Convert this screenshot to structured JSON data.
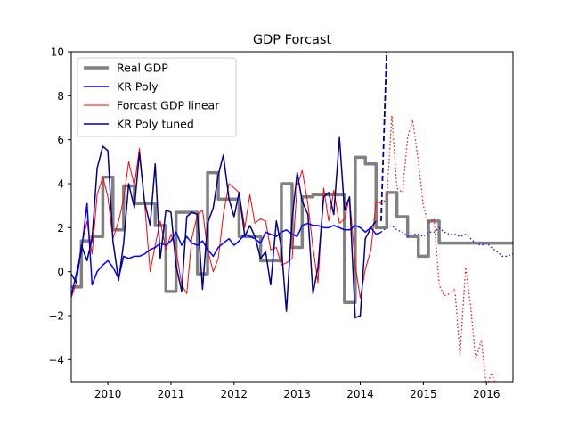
{
  "chart_data": {
    "type": "line",
    "title": "GDP Forcast",
    "xlabel": "",
    "ylabel": "",
    "xlim": [
      2009.42,
      2016.42
    ],
    "ylim": [
      -5,
      10
    ],
    "grid": false,
    "legend_position": "top-left",
    "x_ticks": [
      2010,
      2011,
      2012,
      2013,
      2014,
      2015,
      2016
    ],
    "x_tick_labels": [
      "2010",
      "2011",
      "2012",
      "2013",
      "2014",
      "2015",
      "2016"
    ],
    "y_ticks": [
      -4,
      -2,
      0,
      2,
      4,
      6,
      8,
      10
    ],
    "y_tick_labels": [
      "−4",
      "−2",
      "0",
      "2",
      "4",
      "6",
      "8",
      "10"
    ],
    "series": [
      {
        "name": "Real GDP",
        "color": "#808080",
        "style": "solid-thick",
        "x": [
          2009.42,
          2009.58,
          2009.58,
          2009.75,
          2009.75,
          2009.92,
          2009.92,
          2010.08,
          2010.08,
          2010.25,
          2010.25,
          2010.42,
          2010.42,
          2010.58,
          2010.58,
          2010.75,
          2010.75,
          2010.92,
          2010.92,
          2011.08,
          2011.08,
          2011.25,
          2011.25,
          2011.42,
          2011.42,
          2011.58,
          2011.58,
          2011.75,
          2011.75,
          2011.92,
          2011.92,
          2012.08,
          2012.08,
          2012.25,
          2012.25,
          2012.42,
          2012.42,
          2012.58,
          2012.58,
          2012.75,
          2012.75,
          2012.92,
          2012.92,
          2013.08,
          2013.08,
          2013.25,
          2013.25,
          2013.42,
          2013.42,
          2013.58,
          2013.58,
          2013.75,
          2013.75,
          2013.92,
          2013.92,
          2014.08,
          2014.08,
          2014.25,
          2014.25,
          2014.42,
          2014.42,
          2014.58,
          2014.58,
          2014.75,
          2014.75,
          2014.92,
          2014.92,
          2015.08,
          2015.08,
          2015.25,
          2015.25,
          2015.42,
          2015.42,
          2015.58,
          2015.58,
          2015.75,
          2015.75,
          2015.92,
          2015.92,
          2016.08,
          2016.08,
          2016.25,
          2016.25,
          2016.42
        ],
        "values": [
          -0.7,
          -0.7,
          1.4,
          1.4,
          1.6,
          1.6,
          4.3,
          4.3,
          1.9,
          1.9,
          3.9,
          3.9,
          3.1,
          3.1,
          3.1,
          3.1,
          2.1,
          2.1,
          -0.9,
          -0.9,
          2.7,
          2.7,
          2.7,
          2.7,
          -0.1,
          -0.1,
          4.5,
          4.5,
          3.3,
          3.3,
          3.3,
          3.3,
          1.6,
          1.6,
          1.6,
          1.6,
          0.5,
          0.5,
          0.5,
          0.5,
          4.0,
          4.0,
          1.1,
          1.1,
          3.4,
          3.4,
          3.5,
          3.5,
          3.5,
          3.5,
          3.5,
          3.5,
          -1.4,
          -1.4,
          5.2,
          5.2,
          4.9,
          4.9,
          2.0,
          2.0,
          3.6,
          3.6,
          2.5,
          2.5,
          1.6,
          1.6,
          0.7,
          0.7,
          2.3,
          2.3,
          1.3,
          1.3,
          1.3,
          1.3,
          1.3,
          1.3,
          1.3,
          1.3,
          1.3,
          1.3,
          1.3,
          1.3,
          1.3,
          1.3
        ]
      },
      {
        "name": "KR Poly",
        "color": "#0000ff",
        "style": "solid",
        "x": [
          2009.42,
          2009.58,
          2009.67,
          2009.75,
          2009.83,
          2009.92,
          2010.0,
          2010.08,
          2010.17,
          2010.25,
          2010.33,
          2010.42,
          2010.5,
          2010.58,
          2010.67,
          2010.75,
          2010.83,
          2010.92,
          2011.0,
          2011.08,
          2011.17,
          2011.25,
          2011.33,
          2011.42,
          2011.5,
          2011.58,
          2011.67,
          2011.75,
          2011.83,
          2011.92,
          2012.0,
          2012.08,
          2012.17,
          2012.25,
          2012.33,
          2012.42,
          2012.5,
          2012.58,
          2012.67,
          2012.75,
          2012.83,
          2012.92,
          2013.0,
          2013.08,
          2013.17,
          2013.25,
          2013.33,
          2013.42,
          2013.5,
          2013.58,
          2013.67,
          2013.75,
          2013.83,
          2013.92,
          2014.0,
          2014.08,
          2014.17,
          2014.25,
          2014.33
        ],
        "values": [
          -1.1,
          0.9,
          3.1,
          -0.6,
          0.0,
          0.3,
          0.5,
          0.2,
          -0.3,
          0.7,
          0.6,
          0.7,
          0.7,
          0.8,
          1.0,
          1.1,
          1.3,
          1.2,
          1.4,
          1.8,
          1.2,
          1.6,
          1.3,
          1.2,
          1.4,
          1.0,
          0.7,
          1.1,
          1.3,
          1.5,
          1.2,
          1.4,
          1.7,
          1.6,
          1.5,
          1.3,
          1.8,
          1.7,
          1.6,
          1.8,
          1.9,
          1.7,
          1.6,
          2.1,
          2.2,
          2.1,
          2.1,
          2.0,
          2.0,
          2.1,
          2.0,
          1.9,
          1.9,
          2.1,
          2.0,
          1.8,
          2.0,
          1.7,
          1.8
        ]
      },
      {
        "name": "Forcast GDP linear",
        "color": "#ff0000",
        "style": "solid-thin",
        "x": [
          2009.42,
          2009.5,
          2009.58,
          2009.67,
          2009.75,
          2009.83,
          2009.92,
          2010.0,
          2010.08,
          2010.17,
          2010.25,
          2010.33,
          2010.42,
          2010.5,
          2010.58,
          2010.67,
          2010.75,
          2010.83,
          2010.92,
          2011.0,
          2011.08,
          2011.17,
          2011.25,
          2011.33,
          2011.42,
          2011.5,
          2011.58,
          2011.67,
          2011.75,
          2011.83,
          2011.92,
          2012.0,
          2012.08,
          2012.17,
          2012.25,
          2012.33,
          2012.42,
          2012.5,
          2012.58,
          2012.67,
          2012.75,
          2012.83,
          2012.92,
          2013.0,
          2013.08,
          2013.17,
          2013.25,
          2013.33,
          2013.42,
          2013.5,
          2013.58,
          2013.67,
          2013.75,
          2013.83,
          2013.92,
          2014.0,
          2014.08,
          2014.17,
          2014.25,
          2014.33
        ],
        "values": [
          -1.2,
          -0.5,
          1.1,
          2.3,
          0.8,
          3.5,
          4.3,
          3.4,
          1.5,
          2.3,
          3.3,
          5.0,
          3.9,
          5.6,
          3.2,
          0.0,
          1.2,
          2.3,
          1.0,
          1.7,
          1.0,
          -0.6,
          -1.0,
          1.5,
          2.6,
          2.8,
          1.0,
          0.0,
          0.6,
          2.6,
          4.0,
          3.8,
          3.6,
          2.0,
          3.5,
          2.2,
          2.4,
          2.3,
          1.0,
          1.1,
          0.3,
          0.4,
          0.6,
          3.9,
          4.6,
          3.1,
          1.1,
          -0.5,
          3.8,
          2.3,
          3.7,
          2.2,
          2.4,
          3.4,
          0.3,
          -1.2,
          0.1,
          1.0,
          3.2,
          3.1
        ]
      },
      {
        "name": "KR Poly tuned",
        "color": "#00008b",
        "style": "solid",
        "x": [
          2009.42,
          2009.5,
          2009.58,
          2009.67,
          2009.75,
          2009.83,
          2009.92,
          2010.0,
          2010.08,
          2010.17,
          2010.25,
          2010.33,
          2010.42,
          2010.5,
          2010.58,
          2010.67,
          2010.75,
          2010.83,
          2010.92,
          2011.0,
          2011.08,
          2011.17,
          2011.25,
          2011.33,
          2011.42,
          2011.5,
          2011.58,
          2011.67,
          2011.75,
          2011.83,
          2011.92,
          2012.0,
          2012.08,
          2012.17,
          2012.25,
          2012.33,
          2012.42,
          2012.5,
          2012.58,
          2012.67,
          2012.75,
          2012.83,
          2012.92,
          2013.0,
          2013.08,
          2013.17,
          2013.25,
          2013.33,
          2013.42,
          2013.5,
          2013.58,
          2013.67,
          2013.75,
          2013.83,
          2013.92,
          2014.0,
          2014.08,
          2014.17,
          2014.25
        ],
        "values": [
          -0.1,
          -0.5,
          1.2,
          0.5,
          1.5,
          4.7,
          5.7,
          5.5,
          1.4,
          -0.4,
          1.3,
          4.0,
          2.9,
          5.4,
          3.2,
          2.1,
          4.9,
          0.6,
          2.8,
          2.7,
          0.3,
          -0.9,
          2.5,
          2.7,
          2.6,
          -0.8,
          2.2,
          2.9,
          4.4,
          5.3,
          3.3,
          2.5,
          3.6,
          1.6,
          2.1,
          1.6,
          0.6,
          0.9,
          -0.6,
          2.3,
          1.1,
          -1.8,
          2.4,
          4.5,
          3.2,
          2.6,
          -1.0,
          0.2,
          3.4,
          3.6,
          2.6,
          6.1,
          2.8,
          3.4,
          -2.1,
          -2.0,
          1.5,
          2.0,
          2.3
        ]
      }
    ],
    "forecast_series": [
      {
        "of": "KR Poly tuned",
        "color": "#00008b",
        "style": "dashed",
        "x": [
          2014.33,
          2014.42
        ],
        "values": [
          2.3,
          10.2
        ]
      },
      {
        "of": "KR Poly",
        "color": "#0000ff",
        "style": "dotted",
        "x": [
          2014.33,
          2014.42,
          2014.5,
          2014.58,
          2014.67,
          2014.75,
          2014.83,
          2014.92,
          2015.0,
          2015.08,
          2015.17,
          2015.25,
          2015.33,
          2015.42,
          2015.5,
          2015.58,
          2015.67,
          2015.75,
          2015.83,
          2015.92,
          2016.0,
          2016.08,
          2016.17,
          2016.25,
          2016.33,
          2016.42
        ],
        "values": [
          1.8,
          2.0,
          2.1,
          1.9,
          1.8,
          1.6,
          1.7,
          1.7,
          1.6,
          1.8,
          1.8,
          2.0,
          1.8,
          1.7,
          1.7,
          1.6,
          1.7,
          1.5,
          1.3,
          1.2,
          1.3,
          1.1,
          0.9,
          0.7,
          0.7,
          0.8
        ]
      },
      {
        "of": "Forcast GDP linear",
        "color": "#ff0000",
        "style": "dotted",
        "x": [
          2014.33,
          2014.42,
          2014.5,
          2014.58,
          2014.67,
          2014.75,
          2014.83,
          2014.92,
          2015.0,
          2015.08,
          2015.17,
          2015.25,
          2015.33,
          2015.42,
          2015.5,
          2015.58,
          2015.67,
          2015.75,
          2015.83,
          2015.92,
          2016.0,
          2016.08,
          2016.17,
          2016.25,
          2016.33
        ],
        "values": [
          3.1,
          3.3,
          7.1,
          3.8,
          3.6,
          6.1,
          6.9,
          5.0,
          3.0,
          2.2,
          2.4,
          -0.6,
          -1.1,
          -1.0,
          -0.8,
          -3.8,
          0.2,
          -1.6,
          -4.0,
          -3.1,
          -5.3,
          -4.6,
          -5.3,
          -5.3,
          -5.3
        ]
      }
    ]
  }
}
